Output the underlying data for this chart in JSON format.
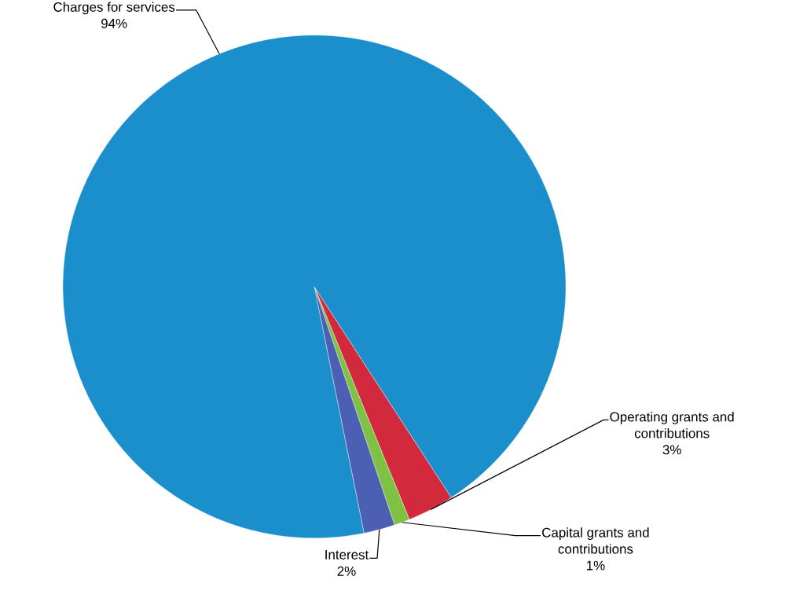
{
  "chart_data": {
    "type": "pie",
    "categories": [
      "Operating grants and contributions",
      "Capital grants and contributions",
      "Interest",
      "Charges for services"
    ],
    "values": [
      3,
      1,
      2,
      94
    ],
    "value_labels": [
      "3%",
      "1%",
      "2%",
      "94%"
    ],
    "colors": [
      "#d22a3c",
      "#7dc243",
      "#4d5fb3",
      "#1b8fcc"
    ]
  }
}
